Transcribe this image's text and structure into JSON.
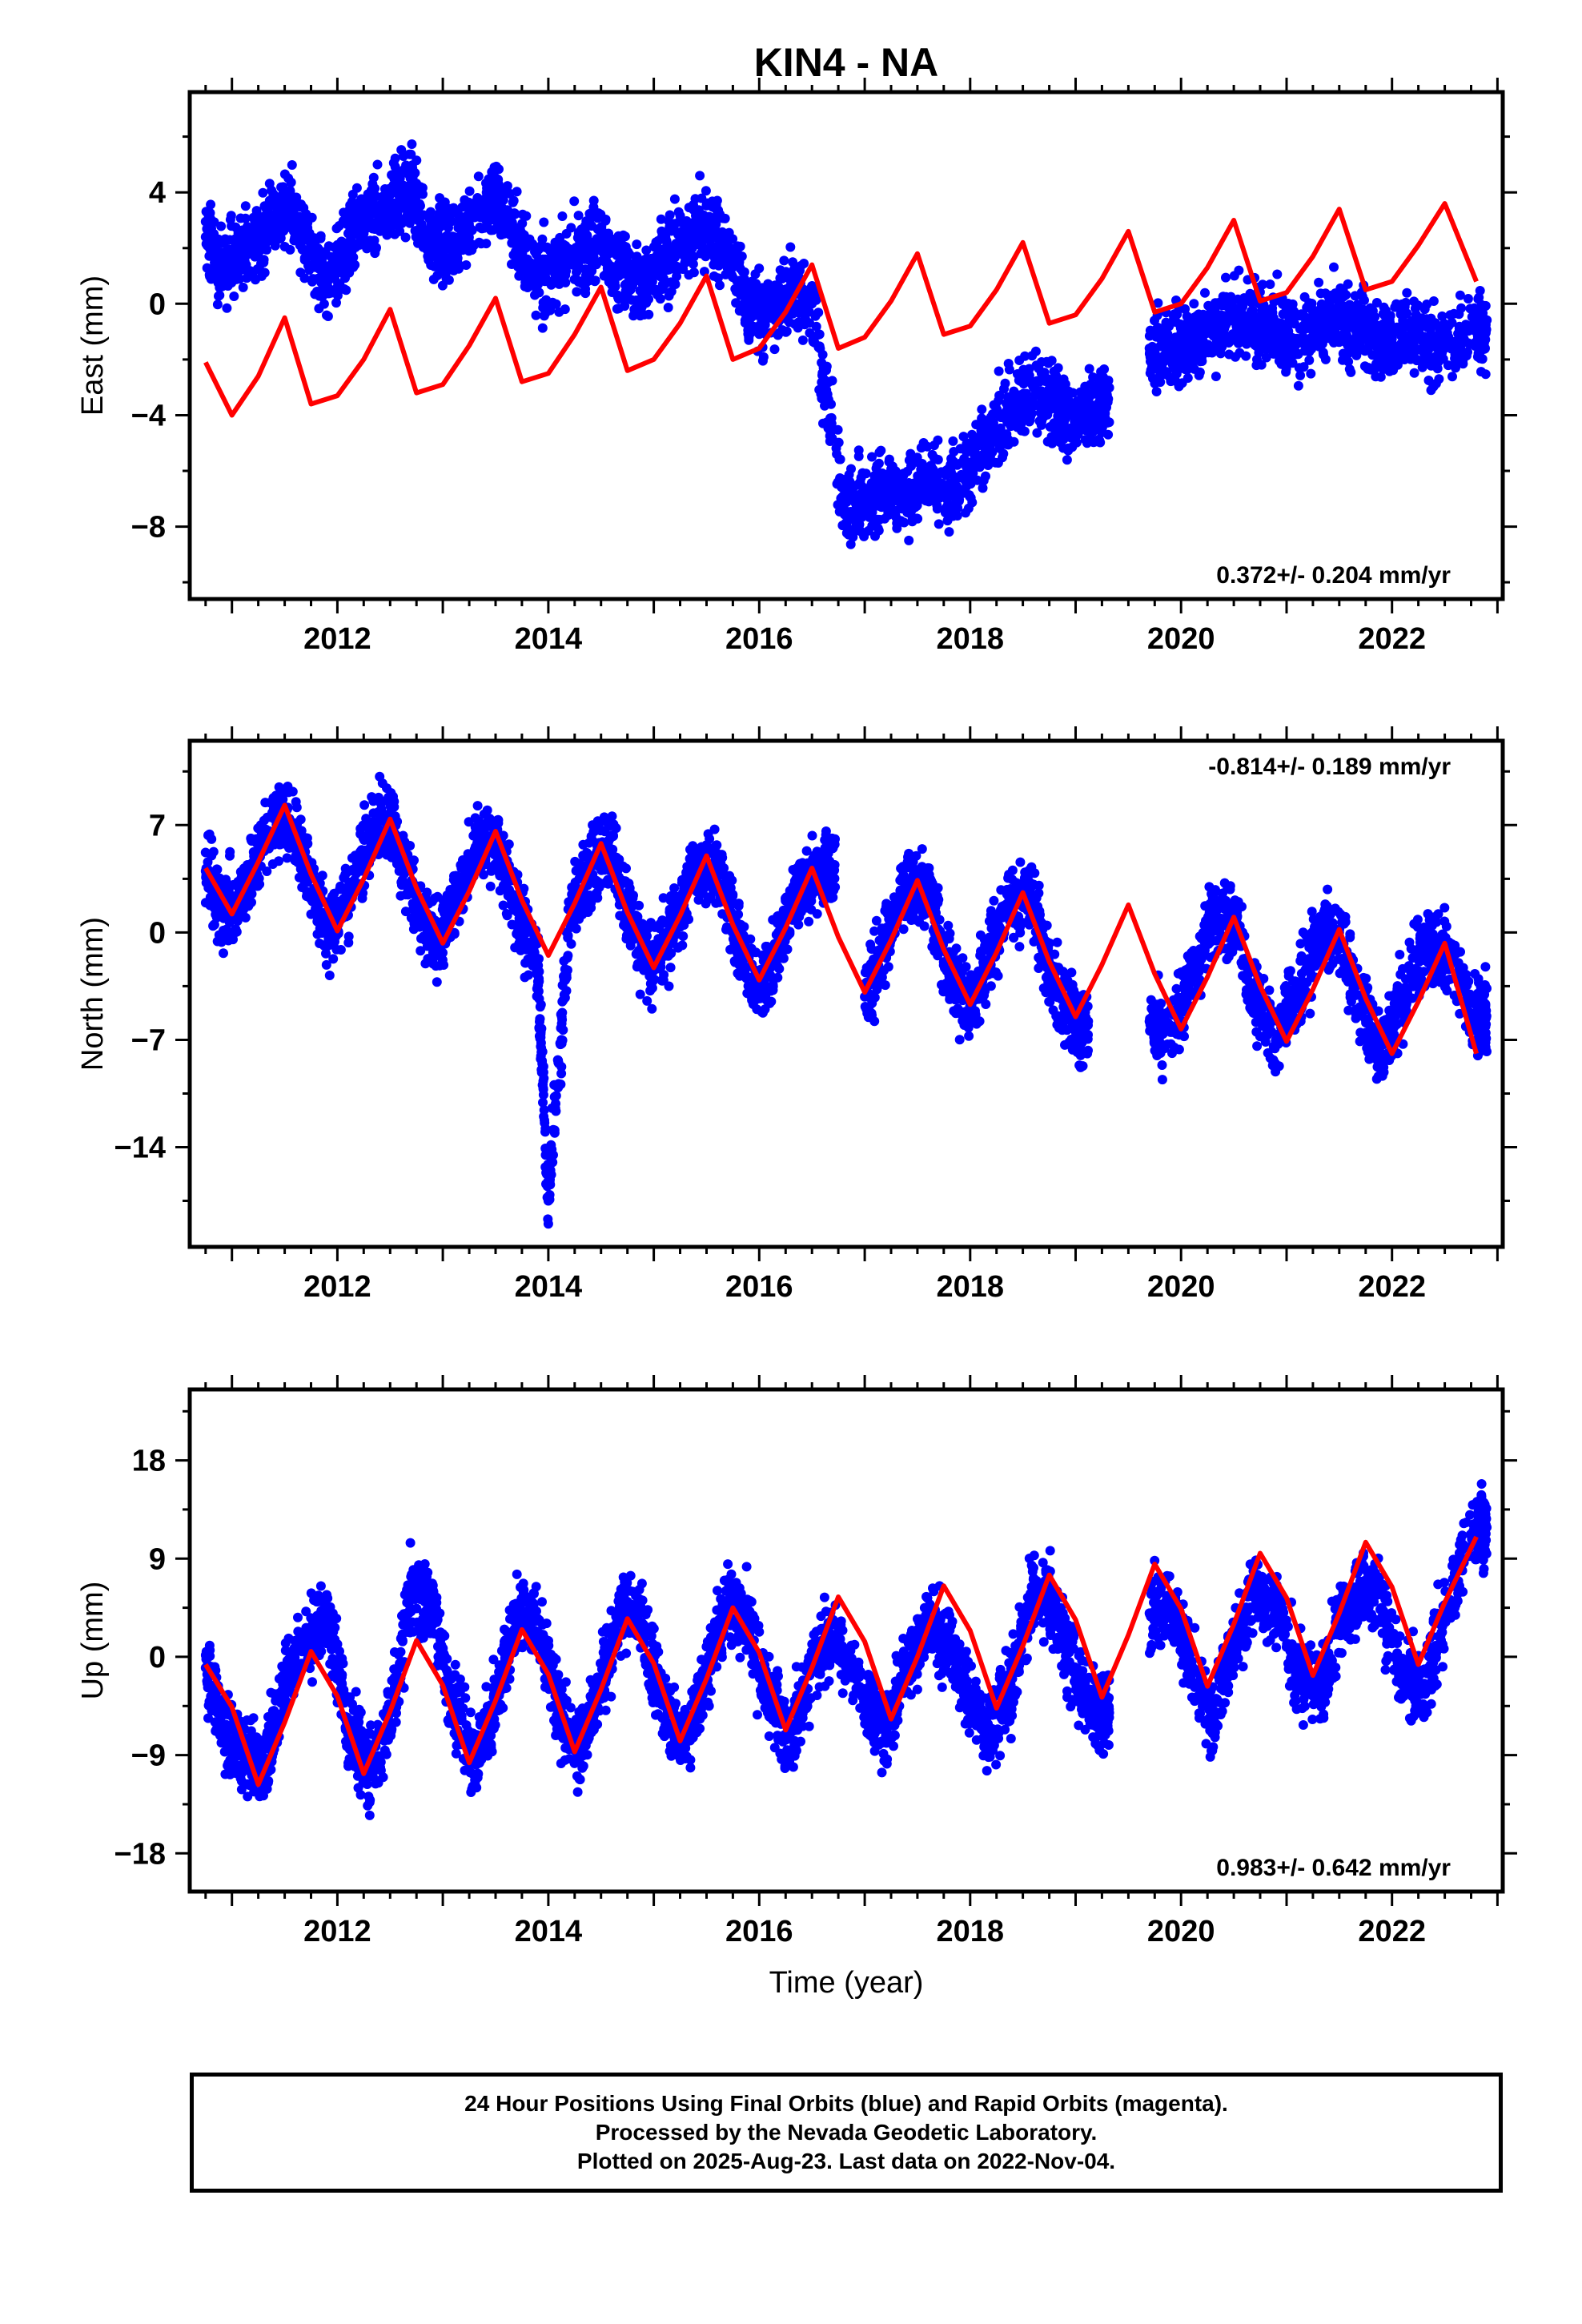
{
  "title": "KIN4 - NA",
  "xlabel": "Time (year)",
  "colors": {
    "points": "#0000ff",
    "model": "#ff0000",
    "frame": "#000000"
  },
  "footer": {
    "line1": "24 Hour Positions Using Final Orbits (blue) and Rapid Orbits (magenta).",
    "line2": "Processed by the Nevada Geodetic Laboratory.",
    "line3": "Plotted on 2025-Aug-23. Last data on 2022-Nov-04."
  },
  "chart_data": [
    {
      "type": "scatter",
      "panel": "east",
      "ylabel": "East (mm)",
      "rate_text": "0.372+/- 0.204 mm/yr",
      "rate_position": "bottom-right",
      "xlim": [
        2010.6,
        2023.05
      ],
      "ylim": [
        -10.6,
        7.6
      ],
      "xticks": [
        2012,
        2014,
        2016,
        2018,
        2020,
        2022
      ],
      "yticks": [
        -8,
        -4,
        0,
        4
      ],
      "grid": false,
      "series": [
        {
          "kind": "points",
          "x": [
            2010.75,
            2010.9,
            2011.1,
            2011.3,
            2011.5,
            2011.7,
            2011.9,
            2012.1,
            2012.3,
            2012.5,
            2012.7,
            2012.9,
            2013.1,
            2013.3,
            2013.5,
            2013.7,
            2013.9,
            2014.1,
            2014.3,
            2014.5,
            2014.7,
            2014.9,
            2015.1,
            2015.3,
            2015.5,
            2015.7,
            2015.9,
            2016.1,
            2016.3,
            2016.5,
            2016.8,
            2017.0,
            2017.2,
            2017.4,
            2017.6,
            2017.8,
            2018.0,
            2018.2,
            2018.4,
            2018.6,
            2018.8,
            2019.0,
            2019.2,
            2019.7,
            2019.9,
            2020.1,
            2020.3,
            2020.5,
            2020.7,
            2020.9,
            2021.1,
            2021.3,
            2021.5,
            2021.7,
            2021.9,
            2022.1,
            2022.3,
            2022.5,
            2022.8
          ],
          "y": [
            2.4,
            1.2,
            2.0,
            2.6,
            3.5,
            2.6,
            0.5,
            2.0,
            3.1,
            3.6,
            4.1,
            2.3,
            2.2,
            3.1,
            3.9,
            2.5,
            0.8,
            1.3,
            2.0,
            2.1,
            1.2,
            0.6,
            1.5,
            2.2,
            2.9,
            1.8,
            0.0,
            -0.5,
            0.5,
            0.0,
            -7.2,
            -7.2,
            -6.5,
            -7.0,
            -6.4,
            -6.8,
            -5.8,
            -4.8,
            -3.8,
            -3.0,
            -3.5,
            -4.0,
            -3.8,
            -1.6,
            -1.6,
            -1.4,
            -0.8,
            -0.4,
            -0.6,
            -0.9,
            -1.3,
            -0.9,
            -0.7,
            -0.8,
            -1.5,
            -1.0,
            -1.3,
            -1.6,
            -0.9
          ]
        },
        {
          "kind": "model",
          "x": [
            2010.75,
            2011.0,
            2011.25,
            2011.5,
            2011.75,
            2012.0,
            2012.25,
            2012.5,
            2012.75,
            2013.0,
            2013.25,
            2013.5,
            2013.75,
            2014.0,
            2014.25,
            2014.5,
            2014.75,
            2015.0,
            2015.25,
            2015.5,
            2015.75,
            2016.0,
            2016.25,
            2016.5,
            2016.75,
            2017.0,
            2017.25,
            2017.5,
            2017.75,
            2018.0,
            2018.25,
            2018.5,
            2018.75,
            2019.0,
            2019.25,
            2019.5,
            2019.75,
            2020.0,
            2020.25,
            2020.5,
            2020.75,
            2021.0,
            2021.25,
            2021.5,
            2021.75,
            2022.0,
            2022.25,
            2022.5,
            2022.8
          ],
          "y": [
            -2.1,
            -4.0,
            -2.6,
            -0.5,
            -3.6,
            -3.3,
            -2.0,
            -0.2,
            -3.2,
            -2.9,
            -1.5,
            0.2,
            -2.8,
            -2.5,
            -1.1,
            0.6,
            -2.4,
            -2.0,
            -0.7,
            1.0,
            -2.0,
            -1.6,
            -0.3,
            1.4,
            -1.6,
            -1.2,
            0.1,
            1.8,
            -1.1,
            -0.8,
            0.5,
            2.2,
            -0.7,
            -0.4,
            0.9,
            2.6,
            -0.3,
            0.0,
            1.3,
            3.0,
            0.1,
            0.4,
            1.7,
            3.4,
            0.5,
            0.8,
            2.1,
            3.6,
            0.8
          ]
        }
      ]
    },
    {
      "type": "scatter",
      "panel": "north",
      "ylabel": "North (mm)",
      "rate_text": "-0.814+/- 0.189 mm/yr",
      "rate_position": "top-right",
      "xlim": [
        2010.6,
        2023.05
      ],
      "ylim": [
        -20.5,
        12.5
      ],
      "xticks": [
        2012,
        2014,
        2016,
        2018,
        2020,
        2022
      ],
      "yticks": [
        -14,
        -7,
        0,
        7
      ],
      "grid": false,
      "series": [
        {
          "kind": "points",
          "x": [
            2010.75,
            2010.9,
            2011.1,
            2011.3,
            2011.5,
            2011.7,
            2011.9,
            2012.1,
            2012.3,
            2012.5,
            2012.7,
            2012.9,
            2013.1,
            2013.3,
            2013.5,
            2013.7,
            2013.9,
            2014.0,
            2014.2,
            2014.4,
            2014.6,
            2014.8,
            2015.0,
            2015.2,
            2015.4,
            2015.6,
            2015.8,
            2016.0,
            2016.2,
            2016.4,
            2016.6,
            2017.0,
            2017.2,
            2017.4,
            2017.6,
            2017.8,
            2018.0,
            2018.2,
            2018.4,
            2018.6,
            2018.8,
            2019.0,
            2019.7,
            2019.9,
            2020.1,
            2020.3,
            2020.5,
            2020.7,
            2020.9,
            2021.1,
            2021.3,
            2021.5,
            2021.7,
            2021.9,
            2022.1,
            2022.3,
            2022.5,
            2022.8
          ],
          "y": [
            4.0,
            1.6,
            2.0,
            6.2,
            8.2,
            4.2,
            0.2,
            1.8,
            6.5,
            7.2,
            3.0,
            -0.6,
            1.5,
            5.4,
            6.0,
            1.6,
            -2.2,
            -17.5,
            0.8,
            4.5,
            5.4,
            0.6,
            -2.5,
            0.6,
            4.1,
            4.6,
            -0.6,
            -4.0,
            -0.5,
            3.6,
            4.0,
            -4.2,
            -0.5,
            3.2,
            2.7,
            -2.5,
            -5.0,
            -1.0,
            2.0,
            1.7,
            -3.6,
            -6.0,
            -5.8,
            -6.5,
            -2.8,
            0.8,
            1.0,
            -4.2,
            -7.0,
            -3.7,
            -0.2,
            0.0,
            -5.0,
            -8.0,
            -4.0,
            -1.0,
            -1.2,
            -5.6
          ]
        },
        {
          "kind": "model",
          "x": [
            2010.75,
            2011.0,
            2011.25,
            2011.5,
            2011.75,
            2012.0,
            2012.25,
            2012.5,
            2012.75,
            2013.0,
            2013.25,
            2013.5,
            2013.75,
            2014.0,
            2014.25,
            2014.5,
            2014.75,
            2015.0,
            2015.25,
            2015.5,
            2015.75,
            2016.0,
            2016.25,
            2016.5,
            2016.75,
            2017.0,
            2017.25,
            2017.5,
            2017.75,
            2018.0,
            2018.25,
            2018.5,
            2018.75,
            2019.0,
            2019.25,
            2019.5,
            2019.75,
            2020.0,
            2020.25,
            2020.5,
            2020.75,
            2021.0,
            2021.25,
            2021.5,
            2021.75,
            2022.0,
            2022.25,
            2022.5,
            2022.8
          ],
          "y": [
            4.2,
            1.2,
            4.6,
            8.3,
            3.8,
            0.1,
            3.5,
            7.4,
            2.9,
            -0.7,
            2.7,
            6.6,
            2.1,
            -1.5,
            1.9,
            5.8,
            1.3,
            -2.3,
            1.1,
            5.0,
            0.5,
            -3.1,
            0.3,
            4.2,
            -0.3,
            -3.9,
            -0.5,
            3.4,
            -1.1,
            -4.7,
            -1.3,
            2.6,
            -1.9,
            -5.5,
            -2.1,
            1.8,
            -2.7,
            -6.3,
            -2.9,
            1.0,
            -3.5,
            -7.1,
            -3.7,
            0.2,
            -4.3,
            -7.9,
            -4.5,
            -0.7,
            -7.9
          ]
        }
      ]
    },
    {
      "type": "scatter",
      "panel": "up",
      "ylabel": "Up (mm)",
      "rate_text": "0.983+/- 0.642 mm/yr",
      "rate_position": "bottom-right",
      "xlim": [
        2010.6,
        2023.05
      ],
      "ylim": [
        -21.5,
        24.5
      ],
      "xticks": [
        2012,
        2014,
        2016,
        2018,
        2020,
        2022
      ],
      "yticks": [
        -18,
        -9,
        0,
        9,
        18
      ],
      "grid": false,
      "series": [
        {
          "kind": "points",
          "x": [
            2010.75,
            2010.9,
            2011.1,
            2011.3,
            2011.5,
            2011.7,
            2011.9,
            2012.1,
            2012.3,
            2012.5,
            2012.7,
            2012.9,
            2013.1,
            2013.3,
            2013.5,
            2013.7,
            2013.9,
            2014.1,
            2014.3,
            2014.5,
            2014.7,
            2014.9,
            2015.1,
            2015.3,
            2015.5,
            2015.7,
            2015.9,
            2016.1,
            2016.3,
            2016.5,
            2016.7,
            2017.0,
            2017.2,
            2017.4,
            2017.6,
            2017.8,
            2018.0,
            2018.2,
            2018.4,
            2018.6,
            2018.8,
            2019.0,
            2019.2,
            2019.7,
            2019.9,
            2020.1,
            2020.3,
            2020.5,
            2020.7,
            2020.9,
            2021.1,
            2021.3,
            2021.5,
            2021.7,
            2021.9,
            2022.1,
            2022.3,
            2022.5,
            2022.8
          ],
          "y": [
            -1.0,
            -5.5,
            -9.0,
            -10.5,
            -2.0,
            1.0,
            4.0,
            -6.0,
            -11.0,
            -6.0,
            6.0,
            5.0,
            -5.0,
            -9.5,
            -4.0,
            4.0,
            3.5,
            -5.0,
            -8.5,
            -2.0,
            4.5,
            3.0,
            -4.5,
            -8.0,
            -1.5,
            4.5,
            3.0,
            -4.0,
            -7.5,
            -1.0,
            2.0,
            -3.5,
            -7.0,
            -1.0,
            3.0,
            1.5,
            -4.0,
            -7.0,
            -2.0,
            6.0,
            4.5,
            -2.0,
            -5.0,
            4.0,
            5.0,
            -1.0,
            -5.5,
            1.0,
            6.0,
            5.0,
            -1.5,
            -3.0,
            3.0,
            6.5,
            4.5,
            -2.0,
            -3.0,
            4.0,
            12.0
          ]
        },
        {
          "kind": "model",
          "x": [
            2010.75,
            2011.0,
            2011.25,
            2011.5,
            2011.75,
            2012.0,
            2012.25,
            2012.5,
            2012.75,
            2013.0,
            2013.25,
            2013.5,
            2013.75,
            2014.0,
            2014.25,
            2014.5,
            2014.75,
            2015.0,
            2015.25,
            2015.5,
            2015.75,
            2016.0,
            2016.25,
            2016.5,
            2016.75,
            2017.0,
            2017.25,
            2017.5,
            2017.75,
            2018.0,
            2018.25,
            2018.5,
            2018.75,
            2019.0,
            2019.25,
            2019.5,
            2019.75,
            2020.0,
            2020.25,
            2020.5,
            2020.75,
            2021.0,
            2021.25,
            2021.5,
            2021.75,
            2022.0,
            2022.25,
            2022.5,
            2022.8
          ],
          "y": [
            -0.7,
            -4.6,
            -11.7,
            -6.0,
            0.5,
            -3.6,
            -10.7,
            -5.0,
            1.5,
            -2.6,
            -9.7,
            -4.0,
            2.5,
            -1.6,
            -8.7,
            -3.0,
            3.5,
            -0.6,
            -7.7,
            -2.0,
            4.5,
            0.4,
            -6.7,
            -1.0,
            5.5,
            1.4,
            -5.7,
            0.0,
            6.5,
            2.4,
            -4.7,
            1.0,
            7.5,
            3.4,
            -3.7,
            2.0,
            8.5,
            4.4,
            -2.7,
            3.0,
            9.5,
            5.4,
            -1.7,
            4.0,
            10.5,
            6.4,
            -0.7,
            5.0,
            11.0
          ]
        }
      ]
    }
  ]
}
